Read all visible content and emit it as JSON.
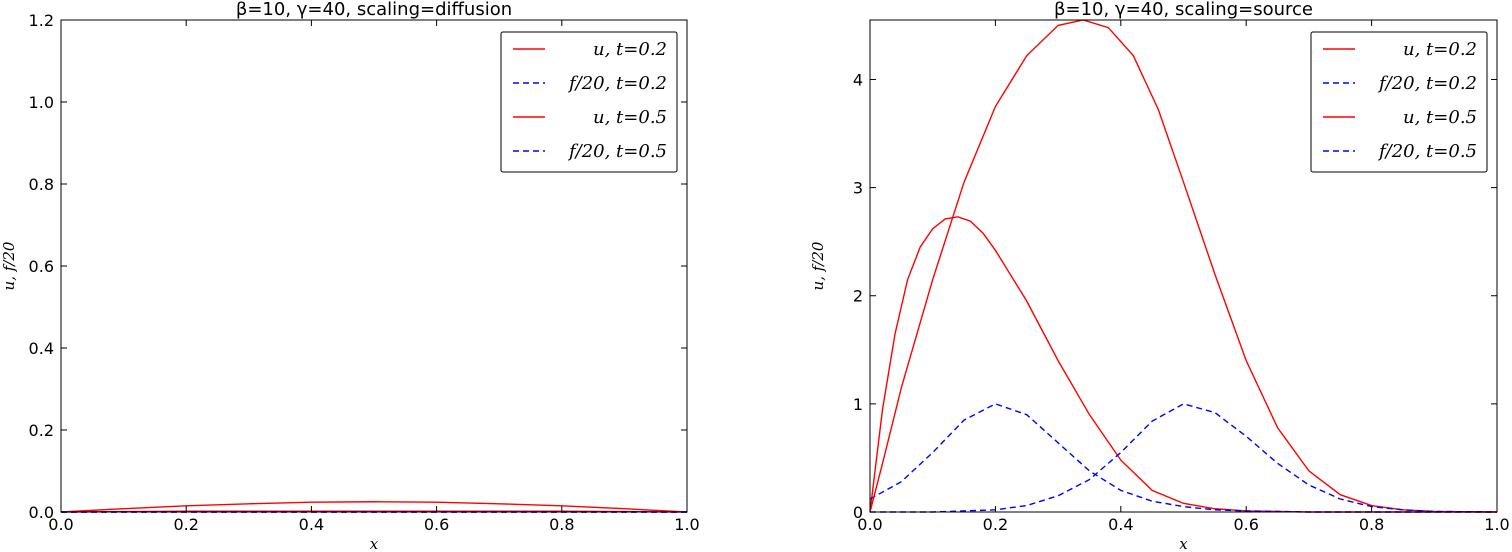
{
  "chart_data": [
    {
      "type": "line",
      "title": "β=10, γ=40, scaling=diffusion",
      "xlabel": "x",
      "ylabel": "u, f/20",
      "xlim": [
        0,
        1
      ],
      "ylim": [
        0,
        1.2
      ],
      "xticks": [
        "0.0",
        "0.2",
        "0.4",
        "0.6",
        "0.8",
        "1.0"
      ],
      "yticks": [
        "0.0",
        "0.2",
        "0.4",
        "0.6",
        "0.8",
        "1.0",
        "1.2"
      ],
      "legend_position": "top-right",
      "series": [
        {
          "name": "u, t=0.2",
          "color": "#ff0000",
          "style": "solid",
          "x": [
            0.0,
            0.1,
            0.2,
            0.3,
            0.4,
            0.5,
            0.6,
            0.7,
            0.8,
            0.9,
            1.0
          ],
          "y": [
            0.0,
            0.001,
            0.002,
            0.002,
            0.002,
            0.002,
            0.002,
            0.002,
            0.002,
            0.001,
            0.0
          ]
        },
        {
          "name": "f/20, t=0.2",
          "color": "#0000ff",
          "style": "dashed",
          "x": [
            0.0,
            0.1,
            0.2,
            0.3,
            0.4,
            0.5,
            0.6,
            0.7,
            0.8,
            0.9,
            1.0
          ],
          "y": [
            0.0,
            0.0,
            0.0,
            0.0,
            0.0,
            0.0,
            0.0,
            0.0,
            0.0,
            0.0,
            0.0
          ]
        },
        {
          "name": "u, t=0.5",
          "color": "#ff0000",
          "style": "solid",
          "x": [
            0.0,
            0.1,
            0.2,
            0.3,
            0.4,
            0.5,
            0.6,
            0.7,
            0.8,
            0.9,
            1.0
          ],
          "y": [
            0.0,
            0.008,
            0.015,
            0.02,
            0.024,
            0.025,
            0.024,
            0.02,
            0.015,
            0.008,
            0.0
          ]
        },
        {
          "name": "f/20, t=0.5",
          "color": "#0000ff",
          "style": "dashed",
          "x": [
            0.0,
            0.1,
            0.2,
            0.3,
            0.4,
            0.5,
            0.6,
            0.7,
            0.8,
            0.9,
            1.0
          ],
          "y": [
            0.0,
            0.0,
            0.0,
            0.0,
            0.0,
            0.0,
            0.0,
            0.0,
            0.0,
            0.0,
            0.0
          ]
        }
      ]
    },
    {
      "type": "line",
      "title": "β=10, γ=40, scaling=source",
      "xlabel": "x",
      "ylabel": "u, f/20",
      "xlim": [
        0,
        1
      ],
      "ylim": [
        0,
        4.55
      ],
      "xticks": [
        "0.0",
        "0.2",
        "0.4",
        "0.6",
        "0.8",
        "1.0"
      ],
      "yticks": [
        "0",
        "1",
        "2",
        "3",
        "4"
      ],
      "legend_position": "top-right",
      "series": [
        {
          "name": "u, t=0.2",
          "color": "#ff0000",
          "style": "solid",
          "x": [
            0.0,
            0.02,
            0.04,
            0.06,
            0.08,
            0.1,
            0.12,
            0.14,
            0.16,
            0.18,
            0.2,
            0.25,
            0.3,
            0.35,
            0.4,
            0.45,
            0.5,
            0.55,
            0.6,
            0.7,
            0.8,
            0.9,
            1.0
          ],
          "y": [
            0.0,
            0.95,
            1.65,
            2.15,
            2.45,
            2.62,
            2.71,
            2.73,
            2.69,
            2.58,
            2.42,
            1.95,
            1.4,
            0.9,
            0.48,
            0.2,
            0.08,
            0.03,
            0.01,
            0.0,
            0.0,
            0.0,
            0.0
          ]
        },
        {
          "name": "f/20, t=0.2",
          "color": "#0000ff",
          "style": "dashed",
          "x": [
            0.0,
            0.05,
            0.1,
            0.15,
            0.2,
            0.25,
            0.3,
            0.35,
            0.4,
            0.45,
            0.5,
            0.55,
            0.6,
            0.65,
            0.7,
            0.8,
            0.9,
            1.0
          ],
          "y": [
            0.12,
            0.28,
            0.55,
            0.85,
            1.0,
            0.9,
            0.64,
            0.38,
            0.2,
            0.1,
            0.05,
            0.02,
            0.01,
            0.005,
            0.0,
            0.0,
            0.0,
            0.0
          ]
        },
        {
          "name": "u, t=0.5",
          "color": "#ff0000",
          "style": "solid",
          "x": [
            0.0,
            0.02,
            0.05,
            0.1,
            0.15,
            0.2,
            0.25,
            0.3,
            0.34,
            0.38,
            0.42,
            0.46,
            0.5,
            0.55,
            0.6,
            0.65,
            0.7,
            0.75,
            0.8,
            0.85,
            0.9,
            1.0
          ],
          "y": [
            0.0,
            0.45,
            1.15,
            2.15,
            3.05,
            3.75,
            4.22,
            4.5,
            4.55,
            4.48,
            4.22,
            3.72,
            3.05,
            2.2,
            1.4,
            0.78,
            0.38,
            0.16,
            0.06,
            0.02,
            0.005,
            0.0
          ]
        },
        {
          "name": "f/20, t=0.5",
          "color": "#0000ff",
          "style": "dashed",
          "x": [
            0.0,
            0.1,
            0.2,
            0.25,
            0.3,
            0.35,
            0.4,
            0.45,
            0.5,
            0.55,
            0.6,
            0.65,
            0.7,
            0.75,
            0.8,
            0.85,
            0.9,
            1.0
          ],
          "y": [
            0.0,
            0.0,
            0.02,
            0.06,
            0.15,
            0.3,
            0.55,
            0.84,
            1.0,
            0.92,
            0.7,
            0.45,
            0.25,
            0.12,
            0.05,
            0.02,
            0.005,
            0.0
          ]
        }
      ]
    }
  ]
}
